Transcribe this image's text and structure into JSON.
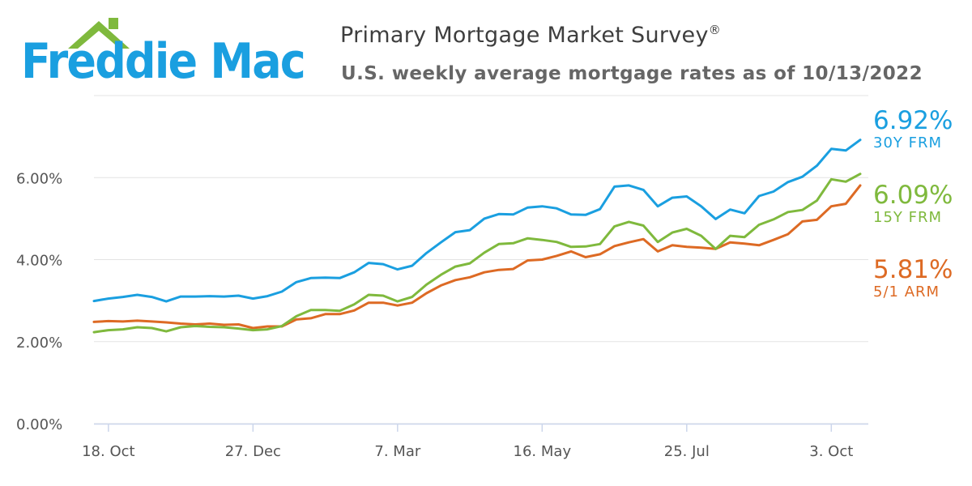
{
  "logo": {
    "brand": "Freddie Mac"
  },
  "header": {
    "title": "Primary Mortgage Market Survey",
    "title_mark": "®",
    "subtitle": "U.S. weekly average mortgage rates as of 10/13/2022"
  },
  "chart_data": {
    "type": "line",
    "title": "Primary Mortgage Market Survey",
    "subtitle": "U.S. weekly average mortgage rates as of 10/13/2022",
    "xlabel": "",
    "ylabel": "",
    "ylim": [
      0,
      8
    ],
    "y_ticks": [
      0,
      2,
      4,
      6
    ],
    "y_tick_labels": [
      "0.00%",
      "2.00%",
      "4.00%",
      "6.00%"
    ],
    "x_tick_labels": [
      "18. Oct",
      "27. Dec",
      "7. Mar",
      "16. May",
      "25. Jul",
      "3. Oct"
    ],
    "x_tick_week_index": [
      1,
      11,
      21,
      31,
      41,
      51
    ],
    "grid": true,
    "series": [
      {
        "name": "30Y FRM",
        "color": "#1a9fe0",
        "last_value_label": "6.92%",
        "values": [
          2.99,
          3.05,
          3.09,
          3.14,
          3.09,
          2.98,
          3.1,
          3.1,
          3.11,
          3.1,
          3.12,
          3.05,
          3.11,
          3.22,
          3.45,
          3.55,
          3.56,
          3.55,
          3.69,
          3.92,
          3.89,
          3.76,
          3.85,
          4.16,
          4.42,
          4.67,
          4.72,
          5.0,
          5.11,
          5.1,
          5.27,
          5.3,
          5.25,
          5.1,
          5.09,
          5.23,
          5.78,
          5.81,
          5.7,
          5.3,
          5.51,
          5.54,
          5.3,
          4.99,
          5.22,
          5.13,
          5.55,
          5.66,
          5.89,
          6.02,
          6.29,
          6.7,
          6.66,
          6.92
        ]
      },
      {
        "name": "15Y FRM",
        "color": "#7fb93d",
        "last_value_label": "6.09%",
        "values": [
          2.23,
          2.28,
          2.3,
          2.35,
          2.33,
          2.25,
          2.35,
          2.38,
          2.36,
          2.35,
          2.32,
          2.28,
          2.3,
          2.38,
          2.62,
          2.77,
          2.77,
          2.75,
          2.91,
          3.14,
          3.12,
          2.98,
          3.09,
          3.39,
          3.63,
          3.83,
          3.91,
          4.17,
          4.38,
          4.4,
          4.52,
          4.48,
          4.43,
          4.31,
          4.32,
          4.38,
          4.81,
          4.92,
          4.83,
          4.43,
          4.66,
          4.75,
          4.58,
          4.26,
          4.58,
          4.55,
          4.85,
          4.98,
          5.16,
          5.21,
          5.44,
          5.96,
          5.9,
          6.09
        ]
      },
      {
        "name": "5/1 ARM",
        "color": "#dd6a24",
        "last_value_label": "5.81%",
        "values": [
          2.48,
          2.5,
          2.49,
          2.51,
          2.49,
          2.47,
          2.44,
          2.42,
          2.44,
          2.41,
          2.42,
          2.33,
          2.37,
          2.37,
          2.54,
          2.57,
          2.67,
          2.67,
          2.76,
          2.95,
          2.95,
          2.88,
          2.95,
          3.18,
          3.37,
          3.5,
          3.57,
          3.69,
          3.75,
          3.77,
          3.98,
          4.0,
          4.09,
          4.2,
          4.06,
          4.13,
          4.33,
          4.42,
          4.5,
          4.2,
          4.35,
          4.31,
          4.29,
          4.26,
          4.42,
          4.39,
          4.35,
          4.48,
          4.62,
          4.93,
          4.97,
          5.3,
          5.36,
          5.81
        ]
      }
    ]
  }
}
